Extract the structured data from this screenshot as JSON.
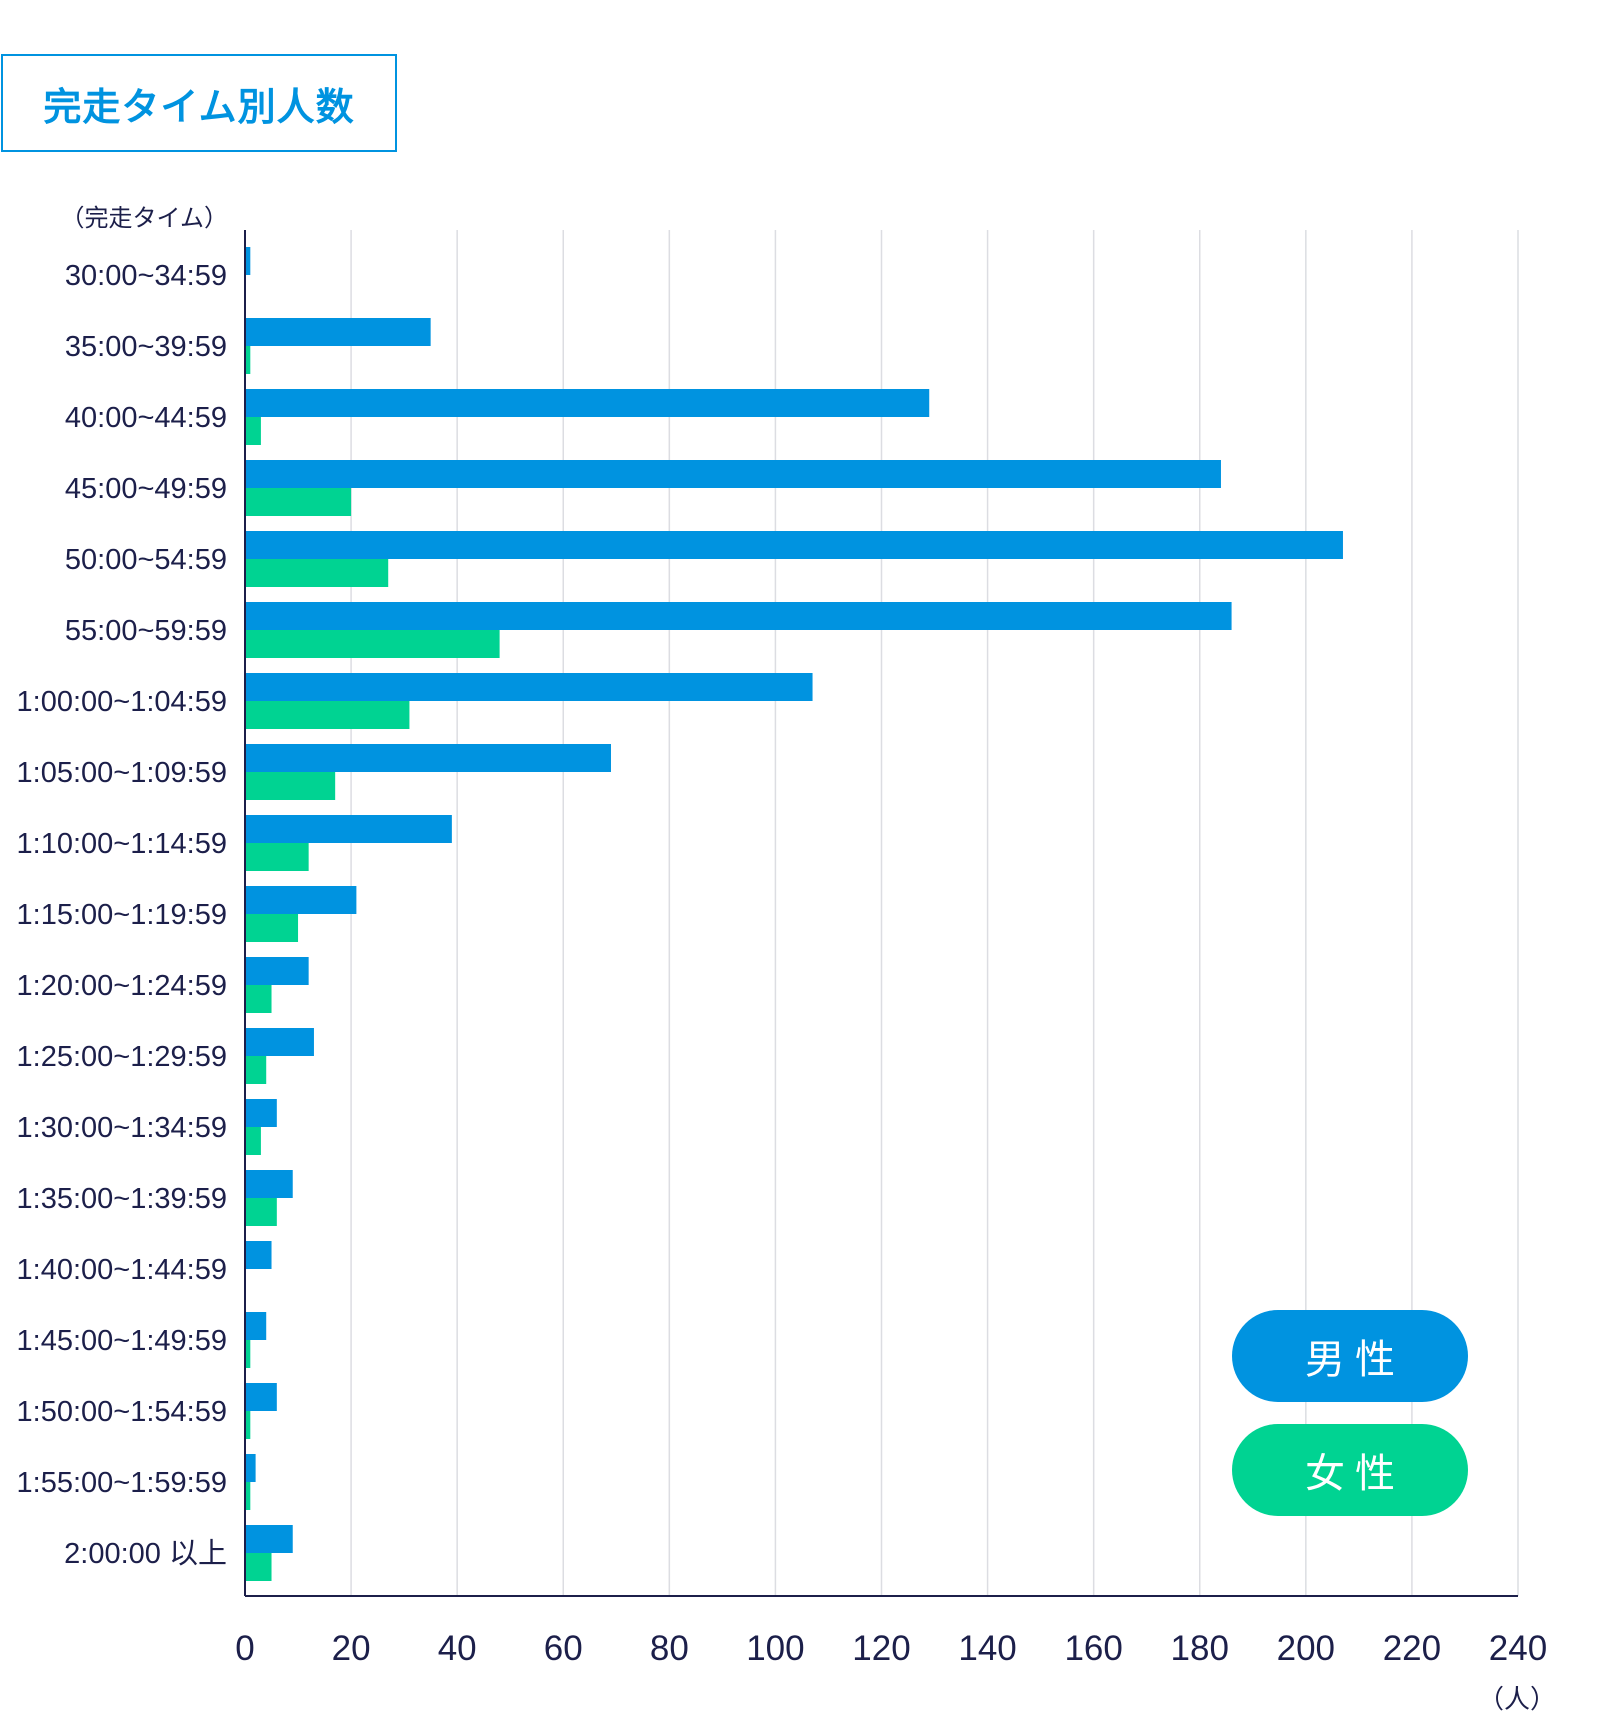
{
  "title": "完走タイム別人数",
  "chart_data": {
    "type": "bar",
    "orientation": "horizontal",
    "y_axis_title": "（完走タイム）",
    "x_unit": "（人）",
    "xlim": [
      0,
      240
    ],
    "xticks": [
      "0",
      "20",
      "40",
      "60",
      "80",
      "100",
      "120",
      "140",
      "160",
      "180",
      "200",
      "220",
      "240"
    ],
    "grid": true,
    "legend_position": "bottom-right",
    "categories": [
      "30:00~34:59",
      "35:00~39:59",
      "40:00~44:59",
      "45:00~49:59",
      "50:00~54:59",
      "55:00~59:59",
      "1:00:00~1:04:59",
      "1:05:00~1:09:59",
      "1:10:00~1:14:59",
      "1:15:00~1:19:59",
      "1:20:00~1:24:59",
      "1:25:00~1:29:59",
      "1:30:00~1:34:59",
      "1:35:00~1:39:59",
      "1:40:00~1:44:59",
      "1:45:00~1:49:59",
      "1:50:00~1:54:59",
      "1:55:00~1:59:59",
      "2:00:00 以上"
    ],
    "series": [
      {
        "name": "男性",
        "color": "#0093e0",
        "values": [
          1,
          35,
          129,
          184,
          207,
          186,
          107,
          69,
          39,
          21,
          12,
          13,
          6,
          9,
          5,
          4,
          6,
          2,
          9
        ]
      },
      {
        "name": "女性",
        "color": "#00d392",
        "values": [
          0,
          1,
          3,
          20,
          27,
          48,
          31,
          17,
          12,
          10,
          5,
          4,
          3,
          6,
          0,
          1,
          1,
          1,
          5
        ]
      }
    ]
  }
}
